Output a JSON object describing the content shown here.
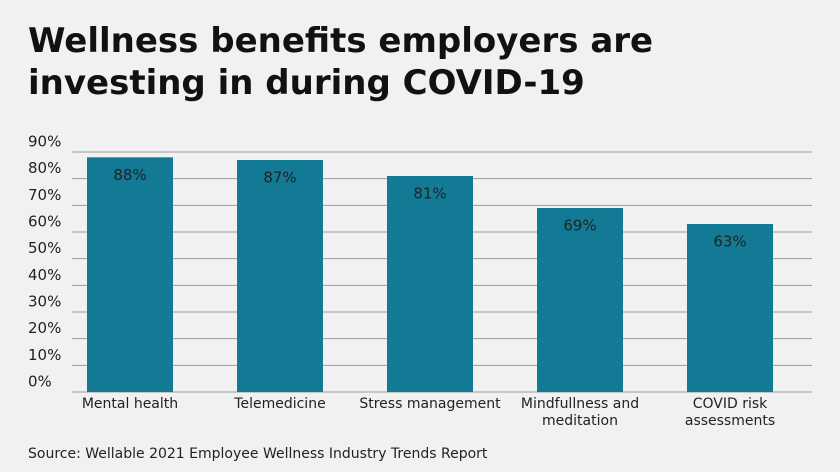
{
  "chart_data": {
    "type": "bar",
    "title": "Wellness benefits employers are investing in during COVID-19",
    "source": "Source: Wellable 2021 Employee Wellness Industry Trends Report",
    "categories": [
      "Mental health",
      "Telemedicine",
      "Stress management",
      "Mindfullness and meditation",
      "COVID risk assessments"
    ],
    "values": [
      88,
      87,
      81,
      69,
      63
    ],
    "value_labels": [
      "88%",
      "87%",
      "81%",
      "69%",
      "63%"
    ],
    "color": "#137a96",
    "ylim": [
      0,
      90
    ],
    "yticks": [
      {
        "value": 0,
        "label": "0%"
      },
      {
        "value": 10,
        "label": "10%"
      },
      {
        "value": 20,
        "label": "20%"
      },
      {
        "value": 30,
        "label": "30%"
      },
      {
        "value": 40,
        "label": "40%"
      },
      {
        "value": 50,
        "label": "50%"
      },
      {
        "value": 60,
        "label": "60%"
      },
      {
        "value": 70,
        "label": "70%"
      },
      {
        "value": 80,
        "label": "80%"
      },
      {
        "value": 90,
        "label": "90%"
      }
    ],
    "grid": true
  }
}
